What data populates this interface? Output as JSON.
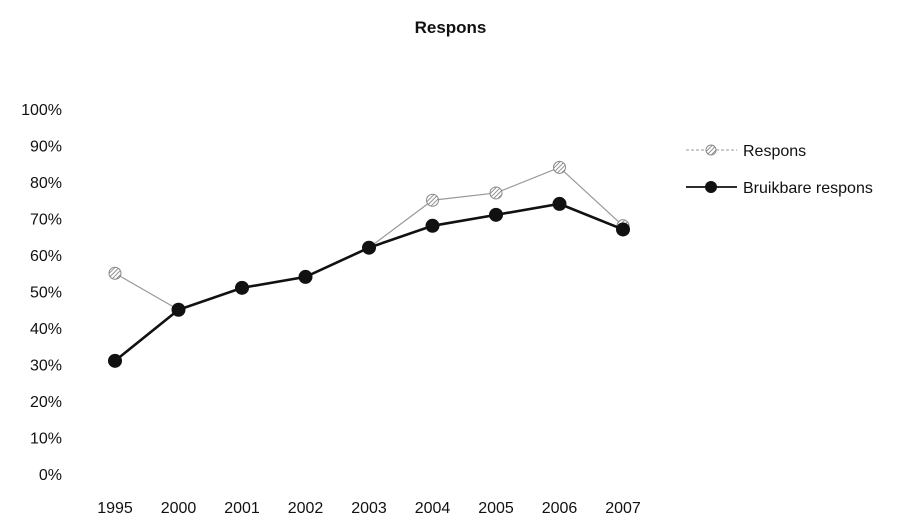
{
  "chart_data": {
    "type": "line",
    "title": "Respons",
    "xlabel": "",
    "ylabel": "",
    "categories": [
      "1995",
      "2000",
      "2001",
      "2002",
      "2003",
      "2004",
      "2005",
      "2006",
      "2007"
    ],
    "ylim": [
      0,
      100
    ],
    "yticks": [
      "0%",
      "10%",
      "20%",
      "30%",
      "40%",
      "50%",
      "60%",
      "70%",
      "80%",
      "90%",
      "100%"
    ],
    "grid": false,
    "legend_position": "right",
    "series": [
      {
        "name": "Respons",
        "values": [
          55,
          45,
          51,
          54,
          62,
          75,
          77,
          84,
          68
        ],
        "color": "#999999",
        "marker": "hatched-circle"
      },
      {
        "name": "Bruikbare respons",
        "values": [
          31,
          45,
          51,
          54,
          62,
          68,
          71,
          74,
          67
        ],
        "color": "#111111",
        "marker": "filled-circle"
      }
    ]
  }
}
